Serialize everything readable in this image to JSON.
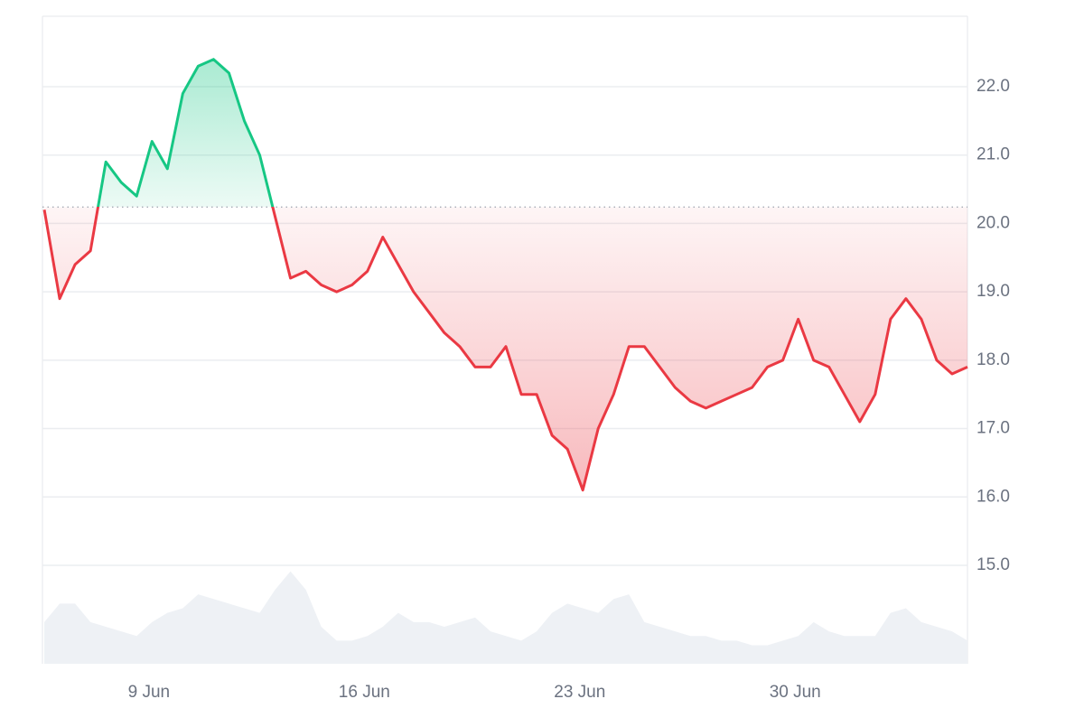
{
  "chart_data": {
    "type": "line",
    "x": [
      5.6,
      6.1,
      6.6,
      7.1,
      7.6,
      8.1,
      8.6,
      9.1,
      9.6,
      10.1,
      10.6,
      11.1,
      11.6,
      12.1,
      12.6,
      13.1,
      13.6,
      14.1,
      14.6,
      15.1,
      15.6,
      16.1,
      16.6,
      17.1,
      17.6,
      18.1,
      18.6,
      19.1,
      19.6,
      20.1,
      20.6,
      21.1,
      21.6,
      22.1,
      22.6,
      23.1,
      23.6,
      24.1,
      24.6,
      25.1,
      25.6,
      26.1,
      26.6,
      27.1,
      27.6,
      28.1,
      28.6,
      29.1,
      29.6,
      30.1,
      30.6,
      31.1,
      31.6,
      32.1,
      32.6,
      33.1,
      33.6,
      34.1,
      34.6,
      35.1,
      35.6
    ],
    "values": [
      20.2,
      18.9,
      19.4,
      19.6,
      20.9,
      20.6,
      20.4,
      21.2,
      20.8,
      21.9,
      22.3,
      22.4,
      22.2,
      21.5,
      21.0,
      20.1,
      19.2,
      19.3,
      19.1,
      19.0,
      19.1,
      19.3,
      19.8,
      19.4,
      19.0,
      18.7,
      18.4,
      18.2,
      17.9,
      17.9,
      18.2,
      17.5,
      17.5,
      16.9,
      16.7,
      16.1,
      17.0,
      17.5,
      18.2,
      18.2,
      17.9,
      17.6,
      17.4,
      17.3,
      17.4,
      17.5,
      17.6,
      17.9,
      18.0,
      18.6,
      18.0,
      17.9,
      17.5,
      17.1,
      17.5,
      18.6,
      18.9,
      18.6,
      18.0,
      17.8,
      17.9
    ],
    "volume": [
      45,
      65,
      65,
      45,
      40,
      35,
      30,
      45,
      55,
      60,
      75,
      70,
      65,
      60,
      55,
      80,
      100,
      80,
      40,
      25,
      25,
      30,
      40,
      55,
      45,
      45,
      40,
      45,
      50,
      35,
      30,
      25,
      35,
      55,
      65,
      60,
      55,
      70,
      75,
      45,
      40,
      35,
      30,
      30,
      25,
      25,
      20,
      20,
      25,
      30,
      45,
      35,
      30,
      30,
      30,
      55,
      60,
      45,
      40,
      35,
      25
    ],
    "baseline": 20.24,
    "up_color": "#16c784",
    "down_color": "#ea3943",
    "volume_color": "#eef1f5",
    "xlim": [
      5.54,
      35.6
    ],
    "xticks": [
      {
        "value": 9,
        "label": "9 Jun"
      },
      {
        "value": 16,
        "label": "16 Jun"
      },
      {
        "value": 23,
        "label": "23 Jun"
      },
      {
        "value": 30,
        "label": "30 Jun"
      }
    ],
    "ylim": [
      13.56,
      23.03
    ],
    "yticks": [
      {
        "value": 15,
        "label": "15.0"
      },
      {
        "value": 16,
        "label": "16.0"
      },
      {
        "value": 17,
        "label": "17.0"
      },
      {
        "value": 18,
        "label": "18.0"
      },
      {
        "value": 19,
        "label": "19.0"
      },
      {
        "value": 20,
        "label": "20.0"
      },
      {
        "value": 21,
        "label": "21.0"
      },
      {
        "value": 22,
        "label": "22.0"
      }
    ],
    "y2lim": [
      0,
      700
    ],
    "grid": true
  }
}
